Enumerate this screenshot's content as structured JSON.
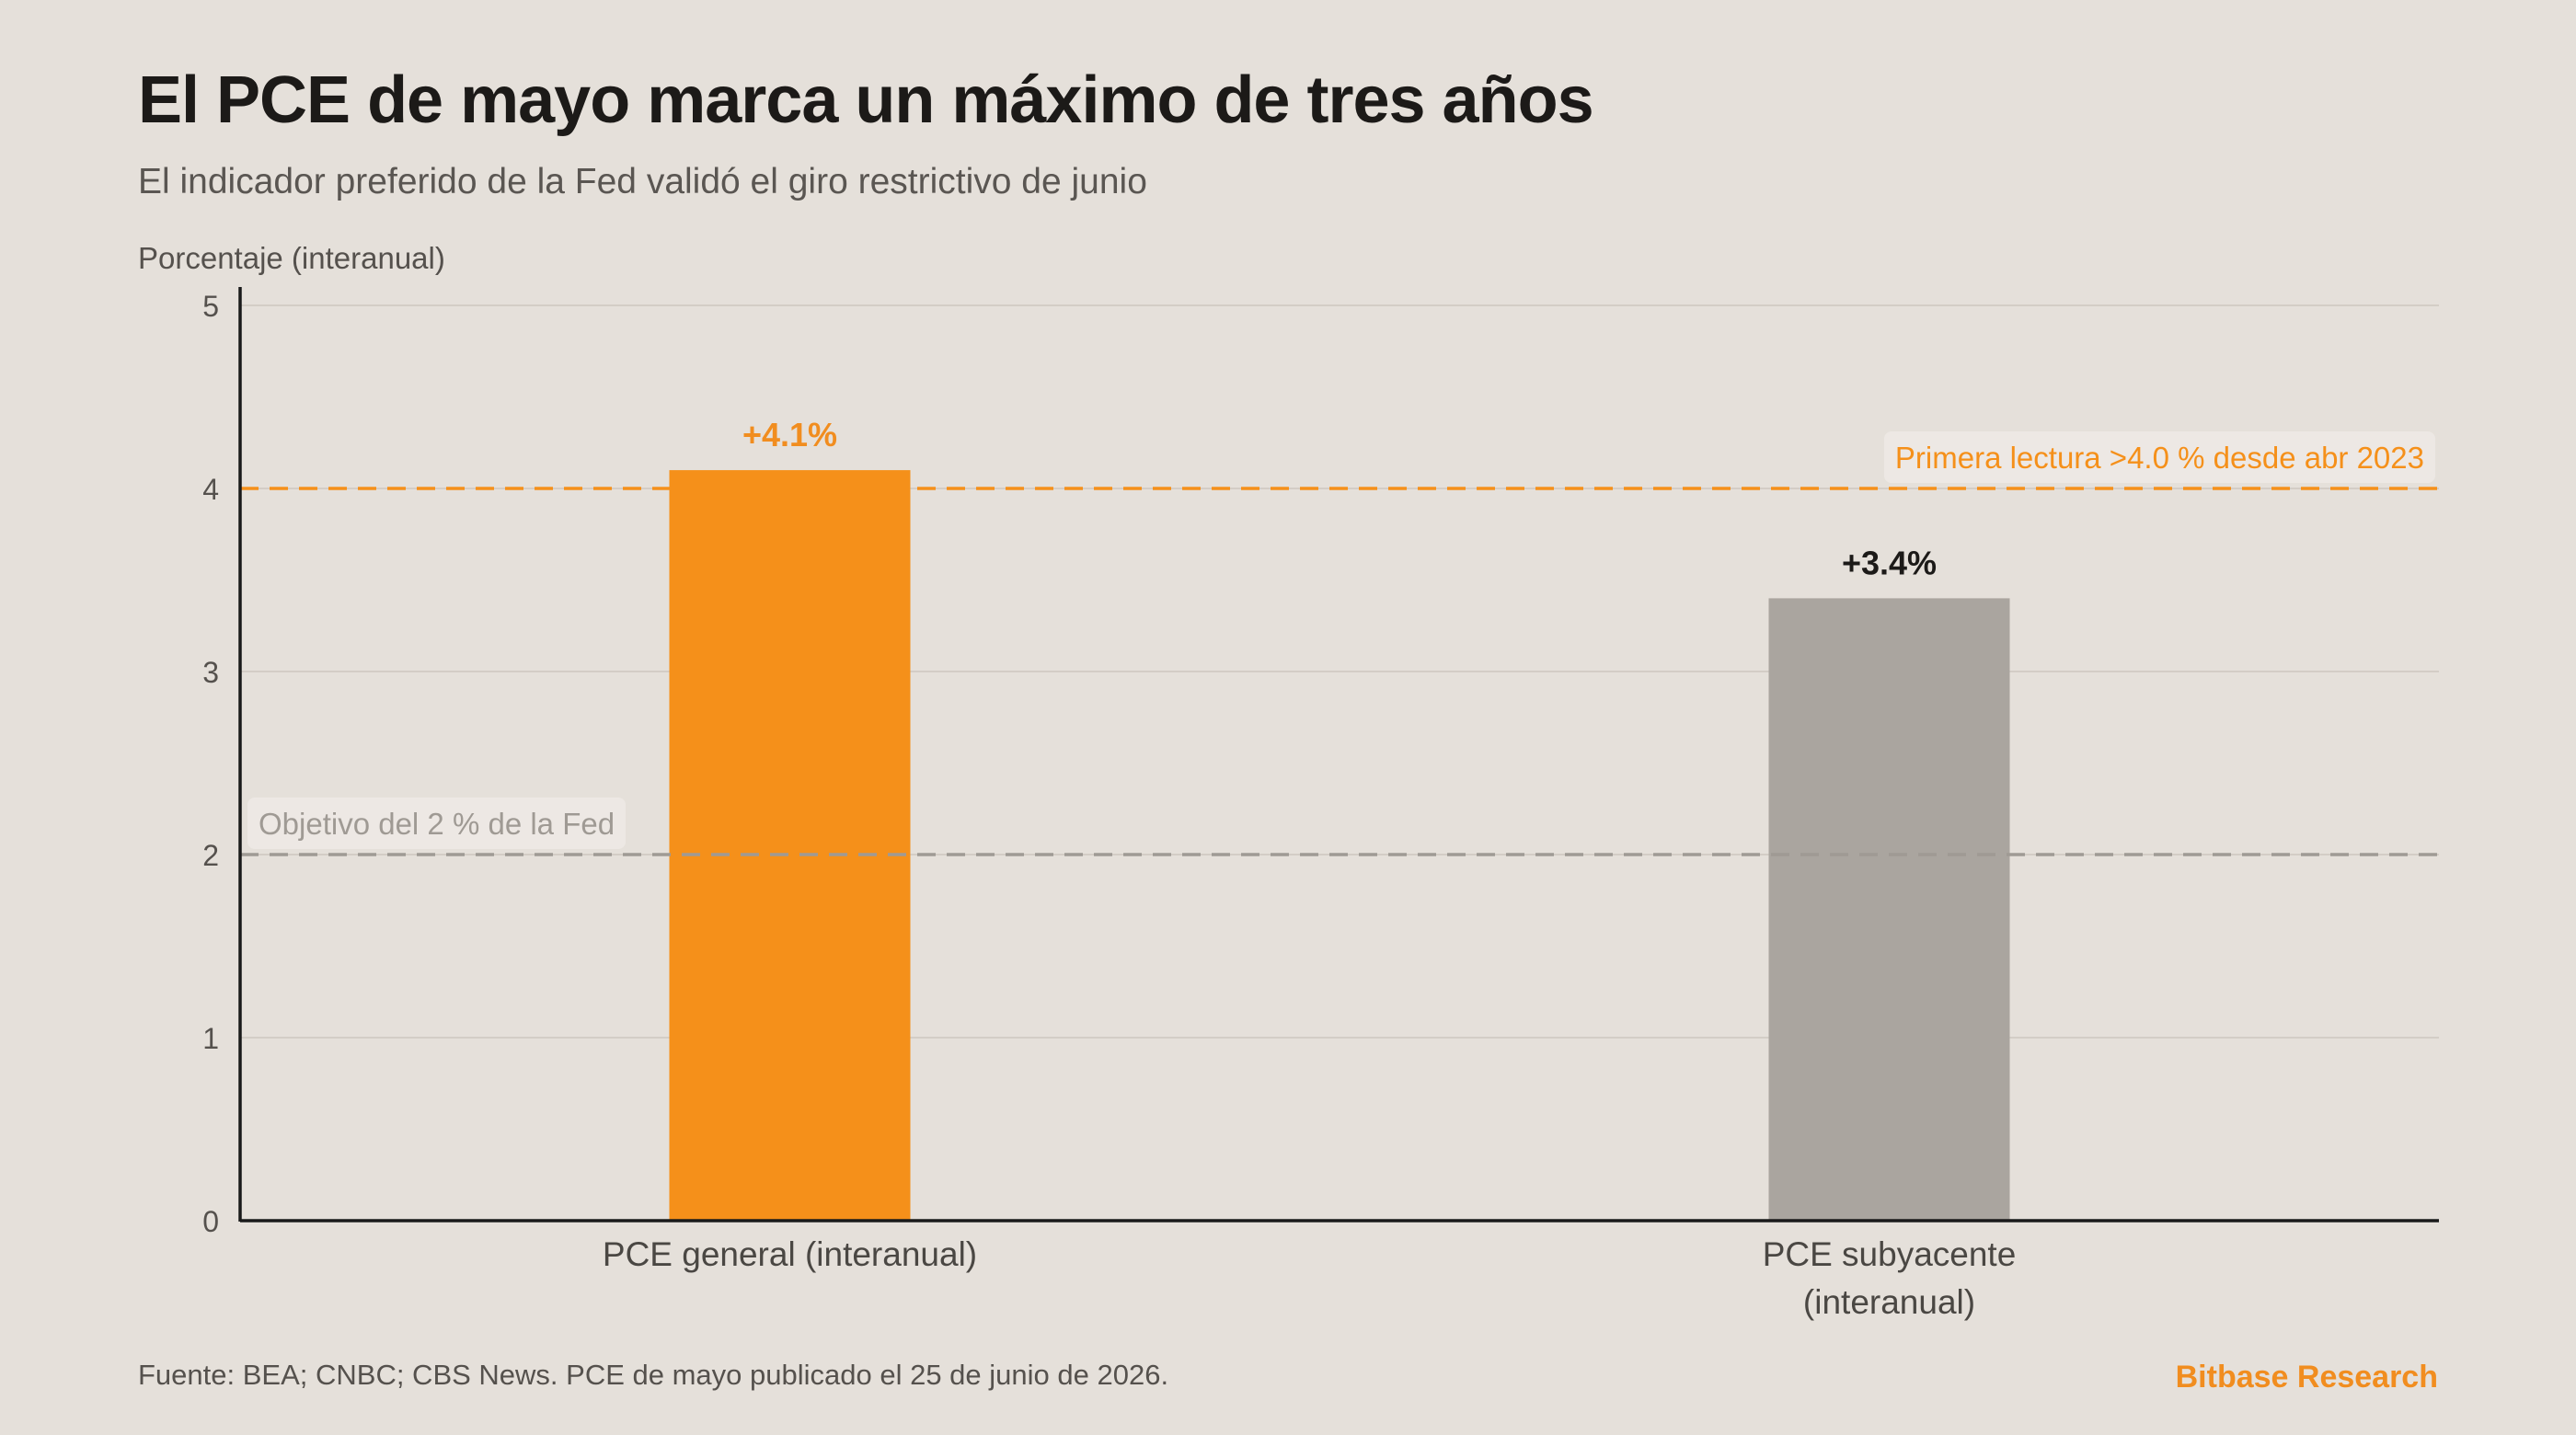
{
  "header": {
    "title": "El PCE de mayo marca un máximo de tres años",
    "subtitle": "El indicador preferido de la Fed validó el giro restrictivo de junio"
  },
  "footer": {
    "source": "Fuente: BEA; CNBC; CBS News. PCE de mayo publicado el 25 de junio de 2026.",
    "brand": "Bitbase Research"
  },
  "colors": {
    "background": "#e5e0da",
    "accent": "#f5901a",
    "secondary_bar": "#aaa59f",
    "grid": "#d3cdc6",
    "target_line": "#9f9a94",
    "axis": "#1a1a1a"
  },
  "chart_data": {
    "type": "bar",
    "title": "El PCE de mayo marca un máximo de tres años",
    "subtitle": "El indicador preferido de la Fed validó el giro restrictivo de junio",
    "ylabel": "Porcentaje (interanual)",
    "xlabel": "",
    "ylim": [
      0,
      5
    ],
    "yticks": [
      0,
      1,
      2,
      3,
      4,
      5
    ],
    "grid": true,
    "categories": [
      [
        "PCE general (interanual)"
      ],
      [
        "PCE subyacente",
        "(interanual)"
      ]
    ],
    "values": [
      4.1,
      3.4
    ],
    "data_labels": [
      "+4.1%",
      "+3.4%"
    ],
    "bar_colors": [
      "#f5901a",
      "#aaa59f"
    ],
    "label_colors": [
      "#f18d1f",
      "#1c1a18"
    ],
    "reference_lines": [
      {
        "value": 4.0,
        "label": "Primera lectura >4.0 % desde abr 2023",
        "color": "#f5901a",
        "label_position": "right"
      },
      {
        "value": 2.0,
        "label": "Objetivo del 2 % de la Fed",
        "color": "#9f9a94",
        "label_position": "left"
      }
    ]
  }
}
